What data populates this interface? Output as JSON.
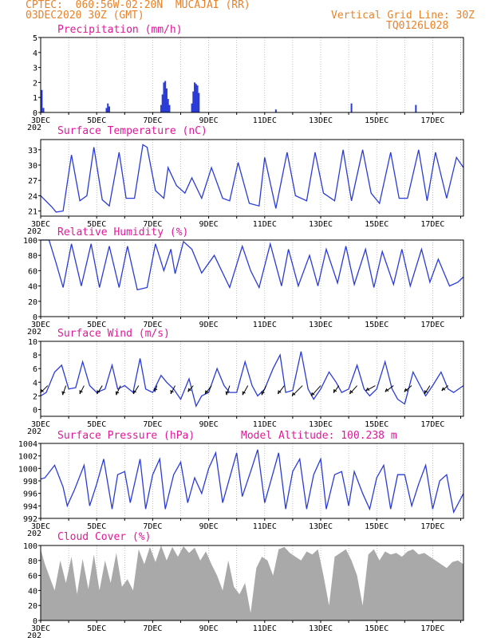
{
  "header": {
    "line1": "CPTEC:  060:56W-02:20N  MUCAJAI (RR)",
    "line2": "03DEC2020 30Z (GMT)",
    "grid_note": "Vertical Grid Line: 30Z",
    "code": "TQ0126L028"
  },
  "x_ticks": [
    "3DEC",
    "5DEC",
    "7DEC",
    "9DEC",
    "11DEC",
    "13DEC",
    "15DEC",
    "17DEC"
  ],
  "year_fragment": "202",
  "colors": {
    "line": "#2a3bd6",
    "bar": "#2a3bd6",
    "cloud": "#a9a9a9",
    "title": "#e0189a",
    "header": "#e8822a",
    "grid": "#9a9a9a"
  },
  "chart_data": [
    {
      "type": "bar",
      "id": "precip",
      "title": "Precipitation (mm/h)",
      "ylim": [
        0,
        5
      ],
      "yticks": [
        0,
        1,
        2,
        3,
        4,
        5
      ],
      "xlim": [
        3,
        18.1
      ],
      "x": [
        3.04,
        3.1,
        5.35,
        5.4,
        5.45,
        7.3,
        7.35,
        7.4,
        7.45,
        7.5,
        7.55,
        7.6,
        8.4,
        8.45,
        8.5,
        8.55,
        8.6,
        8.65,
        11.4,
        14.1,
        16.4
      ],
      "values": [
        1.5,
        0.3,
        0.3,
        0.6,
        0.4,
        0.5,
        1.2,
        2.0,
        2.1,
        1.6,
        0.9,
        0.5,
        0.6,
        1.4,
        2.0,
        1.9,
        1.8,
        1.3,
        0.2,
        0.6,
        0.5
      ]
    },
    {
      "type": "line",
      "id": "temp",
      "title": "Surface Temperature (nC)",
      "ylim": [
        20,
        35
      ],
      "yticks": [
        21,
        24,
        27,
        30,
        33
      ],
      "xlim": [
        3,
        18.1
      ],
      "x": [
        3.0,
        3.4,
        3.55,
        3.8,
        4.1,
        4.4,
        4.65,
        4.9,
        5.2,
        5.45,
        5.8,
        6.05,
        6.35,
        6.65,
        6.8,
        7.1,
        7.4,
        7.55,
        7.85,
        8.15,
        8.4,
        8.75,
        9.1,
        9.5,
        9.75,
        10.05,
        10.45,
        10.8,
        11.0,
        11.4,
        11.8,
        12.1,
        12.5,
        12.8,
        13.1,
        13.5,
        13.8,
        14.1,
        14.5,
        14.8,
        15.1,
        15.5,
        15.8,
        16.1,
        16.5,
        16.8,
        17.1,
        17.5,
        17.85,
        18.1
      ],
      "values": [
        24,
        21.8,
        20.8,
        21,
        32,
        23,
        24,
        33.5,
        23.2,
        22,
        32.5,
        23.5,
        23.5,
        34,
        33.5,
        25,
        23.5,
        29.5,
        26,
        24.5,
        27.5,
        23.5,
        29.5,
        23.5,
        23,
        30.5,
        22.5,
        22,
        31.5,
        21.5,
        32.5,
        24,
        23,
        32.5,
        24.5,
        23,
        33,
        23,
        33,
        24.5,
        22.5,
        32.5,
        23.5,
        23.5,
        33,
        23,
        32.5,
        23.5,
        31.5,
        29.5
      ]
    },
    {
      "type": "line",
      "id": "rh",
      "title": "Relative Humidity (%)",
      "ylim": [
        0,
        100
      ],
      "yticks": [
        0,
        20,
        40,
        60,
        80,
        100
      ],
      "xlim": [
        3,
        18.1
      ],
      "x": [
        3.0,
        3.3,
        3.55,
        3.8,
        4.1,
        4.45,
        4.8,
        5.1,
        5.45,
        5.8,
        6.1,
        6.45,
        6.8,
        7.1,
        7.4,
        7.65,
        7.8,
        8.1,
        8.4,
        8.75,
        9.2,
        9.75,
        10.2,
        10.5,
        10.8,
        11.2,
        11.6,
        11.85,
        12.2,
        12.6,
        12.9,
        13.2,
        13.6,
        13.9,
        14.2,
        14.6,
        14.9,
        15.2,
        15.6,
        15.9,
        16.2,
        16.6,
        16.9,
        17.2,
        17.6,
        17.9,
        18.1
      ],
      "values": [
        100,
        100,
        70,
        38,
        95,
        40,
        95,
        38,
        92,
        38,
        92,
        35,
        38,
        95,
        60,
        88,
        56,
        98,
        88,
        57,
        80,
        38,
        92,
        60,
        38,
        95,
        40,
        88,
        40,
        80,
        40,
        88,
        44,
        92,
        42,
        88,
        38,
        85,
        42,
        88,
        40,
        88,
        45,
        75,
        40,
        45,
        52
      ]
    },
    {
      "type": "line",
      "id": "wind",
      "title": "Surface Wind (m/s)",
      "ylim": [
        -1,
        10
      ],
      "yticks": [
        0,
        2,
        4,
        6,
        8,
        10
      ],
      "xlim": [
        3,
        18.1
      ],
      "x": [
        3.0,
        3.2,
        3.5,
        3.75,
        4.0,
        4.25,
        4.5,
        4.75,
        5.0,
        5.3,
        5.55,
        5.75,
        6.0,
        6.3,
        6.55,
        6.75,
        7.0,
        7.3,
        7.5,
        7.75,
        8.0,
        8.3,
        8.55,
        8.75,
        9.0,
        9.3,
        9.55,
        9.75,
        10.0,
        10.3,
        10.55,
        10.75,
        11.0,
        11.3,
        11.55,
        11.75,
        12.0,
        12.3,
        12.55,
        12.75,
        13.0,
        13.3,
        13.55,
        13.75,
        14.0,
        14.3,
        14.55,
        14.75,
        15.0,
        15.3,
        15.55,
        15.75,
        16.0,
        16.3,
        16.55,
        16.75,
        17.0,
        17.3,
        17.55,
        17.75,
        18.1
      ],
      "values": [
        2,
        2.5,
        5.5,
        6.5,
        3.0,
        3.2,
        7.0,
        3.5,
        2.5,
        3.0,
        6.5,
        3.0,
        3.5,
        2.5,
        7.5,
        3.0,
        2.5,
        5.0,
        4.0,
        3.0,
        1.5,
        4.5,
        0.5,
        2.0,
        2.5,
        6.0,
        3.5,
        2.5,
        2.5,
        7.0,
        3.5,
        2.0,
        3.0,
        6.0,
        8.0,
        2.5,
        2.8,
        8.5,
        3.0,
        1.5,
        3.0,
        5.5,
        4.0,
        2.5,
        3.0,
        6.5,
        3.0,
        2.0,
        3.0,
        7.0,
        3.0,
        1.5,
        0.8,
        5.5,
        3.5,
        2.0,
        3.5,
        5.5,
        3.0,
        2.5,
        3.5
      ],
      "arrows_x": [
        3.25,
        3.9,
        4.55,
        5.2,
        5.85,
        6.5,
        7.15,
        7.8,
        8.45,
        9.1,
        9.75,
        10.4,
        11.05,
        11.7,
        12.35,
        13.0,
        13.65,
        14.3,
        14.95,
        15.6,
        16.25,
        16.9,
        17.55
      ],
      "arrows_dx": [
        0.7,
        0.3,
        0.4,
        0.5,
        0.4,
        0.5,
        0.2,
        0.4,
        0.5,
        0.6,
        0.3,
        0.5,
        0.4,
        0.6,
        1.0,
        0.9,
        0.5,
        0.7,
        0.9,
        0.8,
        0.7,
        0.5,
        0.6
      ],
      "arrows_dy": [
        0.7,
        0.9,
        0.8,
        0.8,
        0.9,
        0.8,
        0.6,
        0.8,
        0.6,
        0.8,
        0.9,
        0.9,
        0.9,
        0.8,
        1.0,
        1.0,
        0.7,
        0.8,
        0.5,
        0.6,
        0.6,
        0.8,
        0.5
      ]
    },
    {
      "type": "line",
      "id": "pres",
      "title": "Surface Pressure (hPa)",
      "subtitle": "Model Altitude: 100.238 m",
      "ylim": [
        992,
        1004
      ],
      "yticks": [
        992,
        994,
        996,
        998,
        1000,
        1002,
        1004
      ],
      "xlim": [
        3,
        18.1
      ],
      "x": [
        3.0,
        3.15,
        3.5,
        3.8,
        3.95,
        4.2,
        4.55,
        4.75,
        5.0,
        5.25,
        5.55,
        5.75,
        6.0,
        6.2,
        6.55,
        6.75,
        7.0,
        7.25,
        7.45,
        7.75,
        8.0,
        8.25,
        8.5,
        8.75,
        9.0,
        9.25,
        9.5,
        9.75,
        10.0,
        10.2,
        10.5,
        10.75,
        11.0,
        11.25,
        11.5,
        11.75,
        12.0,
        12.25,
        12.5,
        12.75,
        13.0,
        13.2,
        13.5,
        13.75,
        14.0,
        14.2,
        14.5,
        14.75,
        15.0,
        15.25,
        15.5,
        15.75,
        16.0,
        16.25,
        16.5,
        16.75,
        17.0,
        17.25,
        17.5,
        17.75,
        18.1
      ],
      "values": [
        998.3,
        998.5,
        1000.5,
        997,
        994,
        996.5,
        1000.5,
        994,
        997.5,
        1001.5,
        993.5,
        999,
        999.5,
        994.5,
        1001.5,
        993.5,
        999,
        1001.5,
        993.5,
        999,
        1001,
        994.5,
        998.5,
        996,
        1000,
        1002.5,
        994.5,
        998.5,
        1002.5,
        995.5,
        999.5,
        1003,
        994.5,
        998.5,
        1002.5,
        993.5,
        999.5,
        1001.5,
        993.5,
        999,
        1001.5,
        993.5,
        999,
        999.5,
        994,
        999.5,
        996,
        993.5,
        998.5,
        1000.5,
        993.5,
        999,
        999,
        994,
        997.5,
        1000.5,
        993.5,
        998,
        999,
        993,
        996
      ]
    },
    {
      "type": "area",
      "id": "cloud",
      "title": "Cloud Cover (%)",
      "ylim": [
        0,
        100
      ],
      "yticks": [
        0,
        20,
        40,
        60,
        80,
        100
      ],
      "xlim": [
        3,
        18.1
      ],
      "x": [
        3.0,
        3.15,
        3.3,
        3.5,
        3.7,
        3.9,
        4.1,
        4.3,
        4.5,
        4.7,
        4.9,
        5.1,
        5.3,
        5.5,
        5.7,
        5.9,
        6.1,
        6.3,
        6.5,
        6.7,
        6.9,
        7.1,
        7.3,
        7.5,
        7.7,
        7.9,
        8.1,
        8.3,
        8.5,
        8.7,
        8.9,
        9.1,
        9.3,
        9.5,
        9.7,
        9.9,
        10.1,
        10.3,
        10.5,
        10.7,
        10.9,
        11.1,
        11.3,
        11.5,
        11.7,
        11.9,
        12.1,
        12.3,
        12.5,
        12.7,
        12.9,
        13.1,
        13.3,
        13.5,
        13.7,
        13.9,
        14.1,
        14.3,
        14.5,
        14.7,
        14.9,
        15.1,
        15.3,
        15.5,
        15.7,
        15.9,
        16.1,
        16.3,
        16.5,
        16.7,
        16.9,
        17.1,
        17.3,
        17.5,
        17.7,
        17.9,
        18.1
      ],
      "values": [
        95,
        75,
        60,
        40,
        80,
        50,
        85,
        35,
        82,
        42,
        88,
        40,
        80,
        50,
        90,
        45,
        55,
        40,
        95,
        75,
        98,
        78,
        100,
        80,
        98,
        85,
        99,
        90,
        97,
        80,
        92,
        75,
        60,
        40,
        80,
        45,
        35,
        50,
        10,
        70,
        85,
        80,
        60,
        95,
        98,
        90,
        85,
        80,
        92,
        88,
        95,
        60,
        20,
        85,
        90,
        95,
        80,
        60,
        20,
        88,
        95,
        80,
        92,
        88,
        90,
        85,
        92,
        95,
        88,
        90,
        85,
        80,
        75,
        70,
        78,
        80,
        75
      ]
    }
  ]
}
